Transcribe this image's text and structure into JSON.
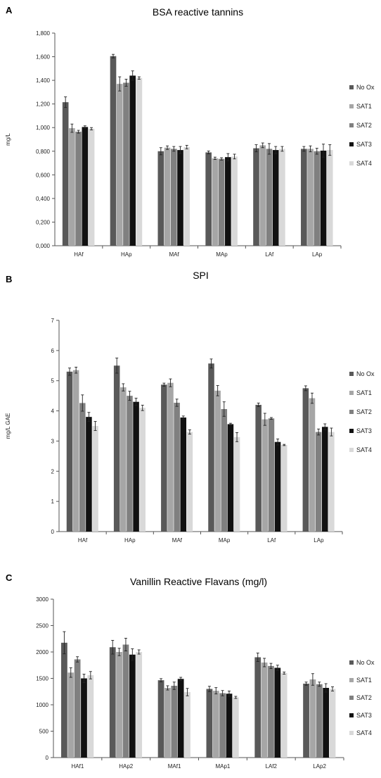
{
  "chart_data": [
    {
      "panel": "A",
      "type": "bar",
      "title": "BSA reactive tannins",
      "ylabel": "mg/L",
      "xlabel": "",
      "ylim": [
        0,
        1.8
      ],
      "yticks": [
        0,
        0.2,
        0.4,
        0.6,
        0.8,
        1.0,
        1.2,
        1.4,
        1.6,
        1.8
      ],
      "ytick_labels": [
        "0,000",
        "0,200",
        "0,400",
        "0,600",
        "0,800",
        "1,000",
        "1,200",
        "1,400",
        "1,600",
        "1,800"
      ],
      "categories": [
        "HAf",
        "HAp",
        "MAf",
        "MAp",
        "LAf",
        "LAp"
      ],
      "series": [
        {
          "name": "No Ox",
          "values": [
            1.215,
            1.605,
            0.8,
            0.79,
            0.825,
            0.82
          ],
          "errors": [
            0.045,
            0.015,
            0.03,
            0.012,
            0.03,
            0.02
          ]
        },
        {
          "name": "SAT1",
          "values": [
            0.995,
            1.37,
            0.83,
            0.74,
            0.85,
            0.82
          ],
          "errors": [
            0.035,
            0.06,
            0.015,
            0.01,
            0.02,
            0.025
          ]
        },
        {
          "name": "SAT2",
          "values": [
            0.965,
            1.38,
            0.82,
            0.735,
            0.82,
            0.8
          ],
          "errors": [
            0.012,
            0.03,
            0.02,
            0.01,
            0.045,
            0.025
          ]
        },
        {
          "name": "SAT3",
          "values": [
            1.005,
            1.44,
            0.81,
            0.75,
            0.81,
            0.805
          ],
          "errors": [
            0.01,
            0.04,
            0.03,
            0.03,
            0.03,
            0.055
          ]
        },
        {
          "name": "SAT4",
          "values": [
            0.99,
            1.42,
            0.835,
            0.755,
            0.82,
            0.81
          ],
          "errors": [
            0.01,
            0.01,
            0.015,
            0.02,
            0.02,
            0.045
          ]
        }
      ]
    },
    {
      "panel": "B",
      "type": "bar",
      "title": "SPI",
      "ylabel": "mg/L GAE",
      "xlabel": "",
      "ylim": [
        0,
        7
      ],
      "yticks": [
        0,
        1,
        2,
        3,
        4,
        5,
        6,
        7
      ],
      "ytick_labels": [
        "0",
        "1",
        "2",
        "3",
        "4",
        "5",
        "6",
        "7"
      ],
      "categories": [
        "HAf",
        "HAp",
        "MAf",
        "MAp",
        "LAf",
        "LAp"
      ],
      "series": [
        {
          "name": "No Ox",
          "values": [
            5.3,
            5.5,
            4.87,
            5.57,
            4.2,
            4.75
          ],
          "errors": [
            0.12,
            0.25,
            0.05,
            0.15,
            0.06,
            0.08
          ]
        },
        {
          "name": "SAT1",
          "values": [
            5.35,
            4.78,
            4.93,
            4.67,
            3.72,
            4.42
          ],
          "errors": [
            0.1,
            0.12,
            0.13,
            0.17,
            0.2,
            0.17
          ]
        },
        {
          "name": "SAT2",
          "values": [
            4.26,
            4.5,
            4.27,
            4.06,
            3.75,
            3.3
          ],
          "errors": [
            0.27,
            0.15,
            0.12,
            0.24,
            0.03,
            0.1
          ]
        },
        {
          "name": "SAT3",
          "values": [
            3.8,
            4.3,
            3.78,
            3.56,
            2.97,
            3.47
          ],
          "errors": [
            0.15,
            0.12,
            0.05,
            0.03,
            0.1,
            0.1
          ]
        },
        {
          "name": "SAT4",
          "values": [
            3.5,
            4.1,
            3.3,
            3.13,
            2.87,
            3.3
          ],
          "errors": [
            0.15,
            0.09,
            0.07,
            0.15,
            0.02,
            0.13
          ]
        }
      ]
    },
    {
      "panel": "C",
      "type": "bar",
      "title": "Vanillin Reactive Flavans (mg/l)",
      "ylabel": "",
      "xlabel": "",
      "ylim": [
        0,
        3000
      ],
      "yticks": [
        0,
        500,
        1000,
        1500,
        2000,
        2500,
        3000
      ],
      "ytick_labels": [
        "0",
        "500",
        "1000",
        "1500",
        "2000",
        "2500",
        "3000"
      ],
      "categories": [
        "HAf1",
        "HAp2",
        "MAf1",
        "MAp1",
        "LAf2",
        "LAp2"
      ],
      "series": [
        {
          "name": "No Ox",
          "values": [
            2175,
            2090,
            1465,
            1300,
            1900,
            1400
          ],
          "errors": [
            210,
            130,
            30,
            50,
            80,
            30
          ]
        },
        {
          "name": "SAT1",
          "values": [
            1610,
            2000,
            1320,
            1265,
            1800,
            1480
          ],
          "errors": [
            90,
            70,
            40,
            60,
            80,
            110
          ]
        },
        {
          "name": "SAT2",
          "values": [
            1860,
            2140,
            1360,
            1220,
            1735,
            1390
          ],
          "errors": [
            50,
            120,
            70,
            50,
            50,
            40
          ]
        },
        {
          "name": "SAT3",
          "values": [
            1500,
            1950,
            1490,
            1210,
            1700,
            1320
          ],
          "errors": [
            80,
            110,
            30,
            50,
            50,
            80
          ]
        },
        {
          "name": "SAT4",
          "values": [
            1560,
            2000,
            1240,
            1140,
            1600,
            1300
          ],
          "errors": [
            70,
            40,
            70,
            20,
            20,
            40
          ]
        }
      ]
    }
  ],
  "colors": {
    "No Ox": "#595959",
    "SAT1": "#a6a6a6",
    "SAT2": "#808080",
    "SAT3": "#111111",
    "SAT4": "#d9d9d9"
  }
}
